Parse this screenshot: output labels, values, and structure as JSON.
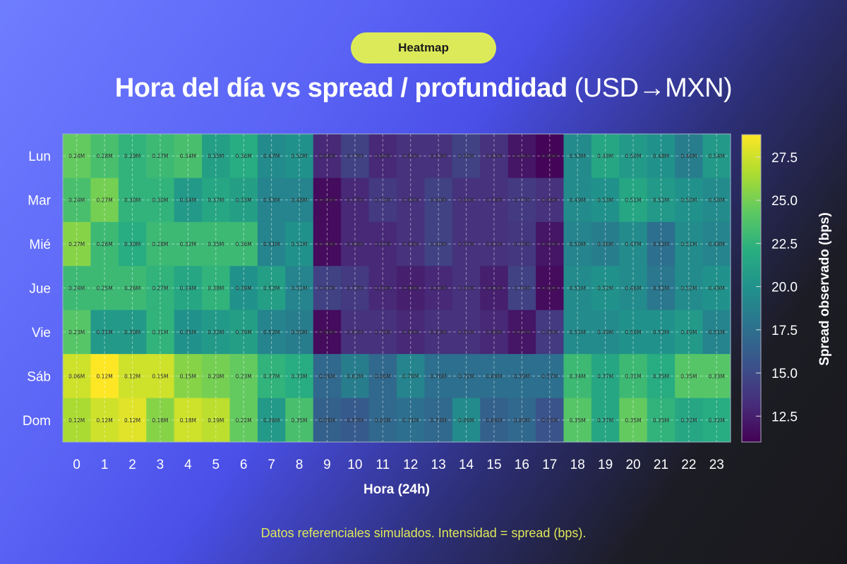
{
  "header": {
    "badge": "Heatmap",
    "title_bold": "Hora del día vs spread / profundidad",
    "title_normal": "(USD→MXN)"
  },
  "footer": "Datos referenciales simulados. Intensidad = spread (bps).",
  "colors": {
    "badge_bg": "#dcea5a",
    "footer_text": "#dfe85a",
    "colormap": "viridis"
  },
  "chart_data": {
    "type": "heatmap",
    "title": "Hora del día vs spread / profundidad (USD→MXN)",
    "xlabel": "Hora (24h)",
    "ylabel": "",
    "colorbar_label": "Spread observado (bps)",
    "colorbar_range": [
      11.0,
      28.8
    ],
    "colorbar_ticks": [
      "12.5",
      "15.0",
      "17.5",
      "20.0",
      "22.5",
      "25.0",
      "27.5"
    ],
    "x": [
      "0",
      "1",
      "2",
      "3",
      "4",
      "5",
      "6",
      "7",
      "8",
      "9",
      "10",
      "11",
      "12",
      "13",
      "14",
      "15",
      "16",
      "17",
      "18",
      "19",
      "20",
      "21",
      "22",
      "23"
    ],
    "y": [
      "Lun",
      "Mar",
      "Mié",
      "Jue",
      "Vie",
      "Sáb",
      "Dom"
    ],
    "grid": true,
    "spread_bps": [
      [
        24.5,
        23.5,
        22.5,
        23,
        23.5,
        21,
        22,
        19.5,
        20,
        13,
        14.5,
        13,
        13.5,
        13.5,
        14.5,
        13.5,
        12,
        11.2,
        19.5,
        21.5,
        20.5,
        20,
        18.5,
        20.5
      ],
      [
        23.5,
        25,
        22.5,
        22.5,
        20.5,
        21.5,
        21,
        19,
        19,
        11.5,
        13,
        14,
        13.5,
        14.5,
        13.5,
        13.5,
        14,
        13.5,
        19.5,
        20,
        21.5,
        20.5,
        20,
        19.5
      ],
      [
        25.5,
        23,
        22,
        23,
        23,
        23,
        23,
        19,
        20,
        11.5,
        13,
        13,
        13.5,
        14.5,
        13.5,
        13.5,
        13.8,
        12,
        19,
        18.5,
        19.5,
        17.5,
        19.5,
        19
      ],
      [
        23,
        23,
        23,
        22.5,
        21.5,
        22.5,
        20,
        21,
        19,
        14.5,
        14,
        13,
        12.5,
        13,
        13.5,
        12.5,
        14.5,
        11.5,
        19.5,
        20,
        19.5,
        18,
        19.5,
        20
      ],
      [
        24,
        20.5,
        20.5,
        22.5,
        20,
        20.5,
        21,
        19,
        18.5,
        11.5,
        13.5,
        13.5,
        13,
        13.5,
        13.5,
        13,
        12,
        14,
        19.5,
        19.5,
        20,
        20,
        20.5,
        19
      ],
      [
        27.5,
        28.8,
        27.5,
        27.5,
        25.5,
        25,
        24.5,
        22.5,
        22,
        17,
        18.5,
        17,
        19,
        17.5,
        17.5,
        17.5,
        17.5,
        17.5,
        23,
        21.5,
        23,
        22,
        24,
        24
      ],
      [
        26.5,
        27.5,
        28,
        25.5,
        27.5,
        27,
        24.5,
        20.5,
        23.5,
        16.5,
        16,
        17,
        17.5,
        17,
        19.5,
        16.5,
        17,
        15.5,
        24,
        21.5,
        24.5,
        22.5,
        21.5,
        22
      ]
    ],
    "depth_labels": [
      [
        "0.24M",
        "0.28M",
        "0.29M",
        "0.27M",
        "0.34M",
        "0.35M",
        "0.36M",
        "0.47M",
        "0.50M",
        "0.86M",
        "0.75M",
        "0.86M",
        "0.82M",
        "0.83M",
        "0.80M",
        "0.85M",
        "0.86M",
        "0.89M",
        "0.53M",
        "0.49M",
        "0.50M",
        "0.48M",
        "0.46M",
        "0.54M"
      ],
      [
        "0.24M",
        "0.27M",
        "0.30M",
        "0.30M",
        "0.34M",
        "0.37M",
        "0.33M",
        "0.53M",
        "0.48M",
        "0.86M",
        "0.77M",
        "0.75M",
        "0.85M",
        "0.90M",
        "0.85M",
        "0.78M",
        "0.77M",
        "0.86M",
        "0.49M",
        "0.53M",
        "0.51M",
        "0.51M",
        "0.50M",
        "0.50M"
      ],
      [
        "0.27M",
        "0.26M",
        "0.30M",
        "0.28M",
        "0.32M",
        "0.35M",
        "0.36M",
        "0.51M",
        "0.51M",
        "0.79M",
        "0.84M",
        "0.87M",
        "0.83M",
        "0.80M",
        "0.87M",
        "0.81M",
        "0.76M",
        "0.87M",
        "0.50M",
        "0.46M",
        "0.47M",
        "0.51M",
        "0.51M",
        "0.48M"
      ],
      [
        "0.24M",
        "0.25M",
        "0.26M",
        "0.27M",
        "0.34M",
        "0.38M",
        "0.39M",
        "0.52M",
        "0.51M",
        "0.67M",
        "0.72M",
        "0.83M",
        "0.89M",
        "0.84M",
        "0.83M",
        "0.85M",
        "0.76M",
        "0.92M",
        "0.51M",
        "0.52M",
        "0.46M",
        "0.51M",
        "0.52M",
        "0.49M"
      ],
      [
        "0.23M",
        "0.31M",
        "0.30M",
        "0.31M",
        "0.35M",
        "0.32M",
        "0.39M",
        "0.52M",
        "0.50M",
        "0.88M",
        "0.82M",
        "0.78M",
        "0.84M",
        "0.83M",
        "0.83M",
        "0.80M",
        "0.87M",
        "0.85M",
        "0.51M",
        "0.49M",
        "0.50M",
        "0.52M",
        "0.49M",
        "0.51M"
      ],
      [
        "0.06M",
        "0.12M",
        "0.12M",
        "0.15M",
        "0.15M",
        "0.20M",
        "0.23M",
        "0.37M",
        "0.33M",
        "0.56M",
        "0.62M",
        "0.66M",
        "0.70M",
        "0.76M",
        "0.72M",
        "0.68M",
        "0.59M",
        "0.57M",
        "0.34M",
        "0.37M",
        "0.31M",
        "0.35M",
        "0.35M",
        "0.33M"
      ],
      [
        "0.12M",
        "0.12M",
        "0.12M",
        "0.18M",
        "0.18M",
        "0.19M",
        "0.22M",
        "0.36M",
        "0.35M",
        "0.58M",
        "0.57M",
        "0.63M",
        "0.71M",
        "0.74M",
        "0.69M",
        "0.66M",
        "0.60M",
        "0.53M",
        "0.35M",
        "0.37M",
        "0.35M",
        "0.35M",
        "0.32M",
        "0.32M"
      ]
    ]
  }
}
